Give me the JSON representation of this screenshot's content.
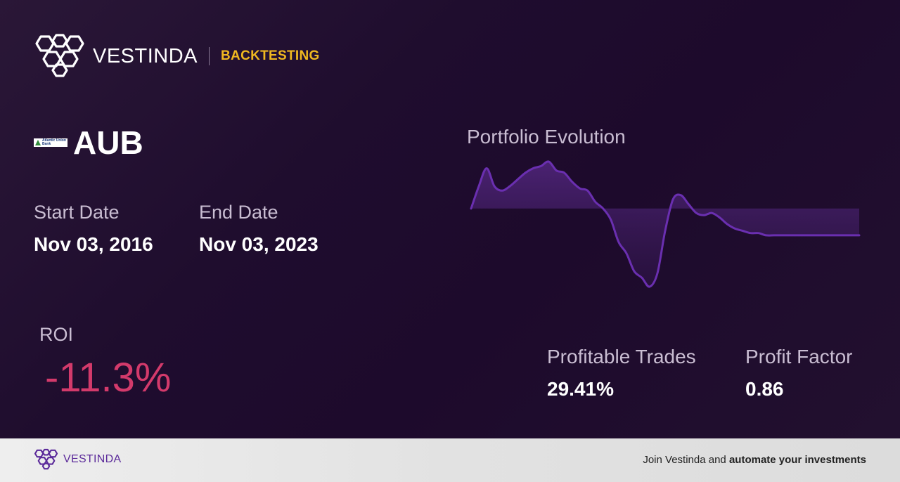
{
  "brand": {
    "name": "VESTINDA",
    "tag": "BACKTESTING"
  },
  "ticker": {
    "symbol": "AUB",
    "logo_text": "Atlantic Union Bank",
    "logo_icon": "atlantic-union-bank-logo"
  },
  "dates": {
    "start_label": "Start Date",
    "start_value": "Nov 03, 2016",
    "end_label": "End Date",
    "end_value": "Nov 03, 2023"
  },
  "roi": {
    "label": "ROI",
    "value": "-11.3%",
    "color": "#d33a6b"
  },
  "chart": {
    "title": "Portfolio Evolution"
  },
  "stats": {
    "profitable_label": "Profitable Trades",
    "profitable_value": "29.41%",
    "factor_label": "Profit Factor",
    "factor_value": "0.86"
  },
  "footer": {
    "brand_name": "VESTINDA",
    "cta_prefix": "Join Vestinda and",
    "cta_bold": "automate your investments"
  },
  "colors": {
    "accent": "#f0b820",
    "line": "#6a2fb0",
    "negative": "#d33a6b"
  },
  "chart_data": {
    "type": "area",
    "title": "Portfolio Evolution",
    "baseline": 0,
    "x": [
      0,
      2,
      4,
      6,
      8,
      10,
      12,
      14,
      16,
      18,
      20,
      22,
      24,
      26,
      28,
      30,
      32,
      34,
      36,
      38,
      40,
      42,
      44,
      46,
      48,
      50,
      52,
      54,
      56,
      58,
      60,
      62,
      64,
      66,
      68,
      70,
      72,
      74,
      76,
      78,
      80,
      82,
      84,
      86,
      88,
      90,
      92,
      94,
      96,
      98,
      100
    ],
    "values": [
      0,
      10,
      18,
      10,
      8,
      10,
      13,
      16,
      18,
      19,
      21,
      17,
      16,
      12,
      9,
      8,
      3,
      0,
      -5,
      -15,
      -20,
      -28,
      -31,
      -35,
      -29,
      -10,
      4,
      6,
      2,
      -2,
      -3,
      -2,
      -4,
      -7,
      -9,
      -10,
      -11,
      -11,
      -12,
      -12,
      -12,
      -12,
      -12,
      -12,
      -12,
      -12,
      -12,
      -12,
      -12,
      -12,
      -12
    ]
  }
}
